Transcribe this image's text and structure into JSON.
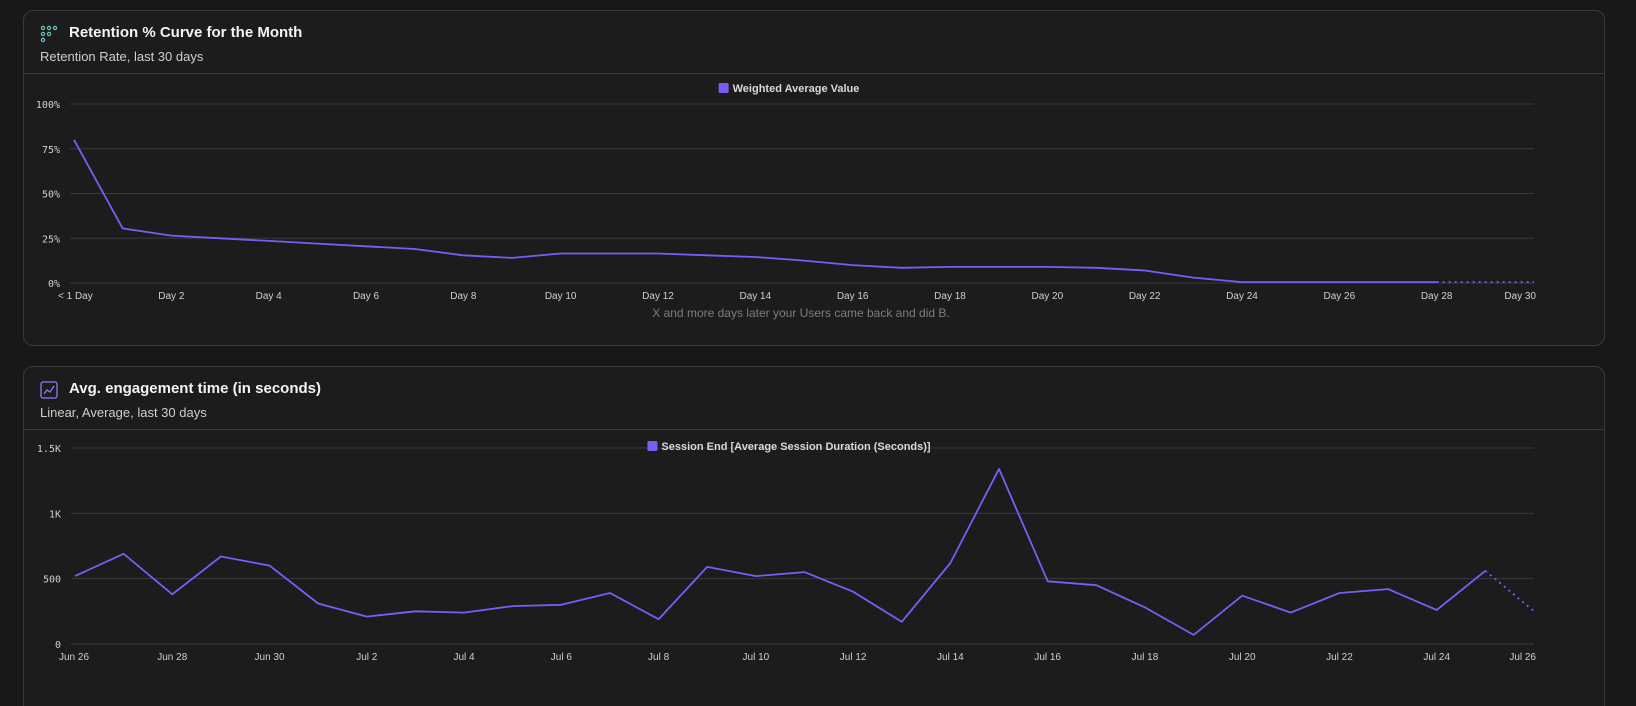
{
  "colors": {
    "series": "#7b5cf6",
    "grid": "#3a3a3d",
    "background": "#181819"
  },
  "cards": [
    {
      "title": "Retention % Curve for the Month",
      "subtitle": "Retention Rate, last 30 days",
      "icon": "retention-icon",
      "note": "X and more days later your Users came back and did B."
    },
    {
      "title": "Avg. engagement time (in seconds)",
      "subtitle": "Linear, Average, last 30 days",
      "icon": "line-chart-icon",
      "note": ""
    }
  ],
  "chart_data": [
    {
      "type": "line",
      "title": "Retention % Curve for the Month",
      "subtitle": "Retention Rate, last 30 days",
      "xlabel": "X and more days later your Users came back and did B.",
      "ylabel": "",
      "legend": "top-center",
      "grid": true,
      "ylim": [
        0,
        100
      ],
      "yticks": [
        0,
        25,
        50,
        75,
        100
      ],
      "ytick_labels": [
        "0%",
        "25%",
        "50%",
        "75%",
        "100%"
      ],
      "x": [
        0,
        1,
        2,
        3,
        4,
        5,
        6,
        7,
        8,
        9,
        10,
        11,
        12,
        13,
        14,
        15,
        16,
        17,
        18,
        19,
        20,
        21,
        22,
        23,
        24,
        25,
        26,
        27,
        28,
        29,
        30
      ],
      "xticks": [
        0,
        2,
        4,
        6,
        8,
        10,
        12,
        14,
        16,
        18,
        20,
        22,
        24,
        26,
        28,
        30
      ],
      "xtick_labels": [
        "< 1 Day",
        "Day 2",
        "Day 4",
        "Day 6",
        "Day 8",
        "Day 10",
        "Day 12",
        "Day 14",
        "Day 16",
        "Day 18",
        "Day 20",
        "Day 22",
        "Day 24",
        "Day 26",
        "Day 28",
        "Day 30"
      ],
      "incomplete_from_index": 28,
      "series": [
        {
          "name": "Weighted Average Value",
          "values": [
            80,
            30.5,
            26.5,
            25,
            23.5,
            22,
            20.5,
            19,
            15.5,
            14,
            16.5,
            16.5,
            16.5,
            15.5,
            14.5,
            12.5,
            10,
            8.5,
            9,
            9,
            9,
            8.5,
            7,
            3,
            0.5,
            0.5,
            0.5,
            0.5,
            0.5,
            0.5,
            0.5
          ]
        }
      ]
    },
    {
      "type": "line",
      "title": "Avg. engagement time (in seconds)",
      "subtitle": "Linear, Average, last 30 days",
      "xlabel": "",
      "ylabel": "",
      "legend": "top-center",
      "grid": true,
      "ylim": [
        0,
        1500
      ],
      "yticks": [
        0,
        500,
        1000,
        1500
      ],
      "ytick_labels": [
        "0",
        "500",
        "1K",
        "1.5K"
      ],
      "x": [
        "Jun 26",
        "Jun 27",
        "Jun 28",
        "Jun 29",
        "Jun 30",
        "Jul 1",
        "Jul 2",
        "Jul 3",
        "Jul 4",
        "Jul 5",
        "Jul 6",
        "Jul 7",
        "Jul 8",
        "Jul 9",
        "Jul 10",
        "Jul 11",
        "Jul 12",
        "Jul 13",
        "Jul 14",
        "Jul 15",
        "Jul 16",
        "Jul 17",
        "Jul 18",
        "Jul 19",
        "Jul 20",
        "Jul 21",
        "Jul 22",
        "Jul 23",
        "Jul 24",
        "Jul 25",
        "Jul 26"
      ],
      "xticks": [
        0,
        2,
        4,
        6,
        8,
        10,
        12,
        14,
        16,
        18,
        20,
        22,
        24,
        26,
        28,
        30
      ],
      "xtick_labels": [
        "Jun 26",
        "Jun 28",
        "Jun 30",
        "Jul 2",
        "Jul 4",
        "Jul 6",
        "Jul 8",
        "Jul 10",
        "Jul 12",
        "Jul 14",
        "Jul 16",
        "Jul 18",
        "Jul 20",
        "Jul 22",
        "Jul 24",
        "Jul 26"
      ],
      "incomplete_from_index": 29,
      "series": [
        {
          "name": "Session End [Average Session Duration (Seconds)]",
          "values": [
            520,
            690,
            380,
            670,
            600,
            310,
            210,
            250,
            240,
            290,
            300,
            390,
            190,
            590,
            520,
            550,
            400,
            170,
            620,
            1340,
            480,
            450,
            280,
            70,
            370,
            240,
            390,
            420,
            260,
            560,
            250
          ]
        }
      ]
    }
  ]
}
